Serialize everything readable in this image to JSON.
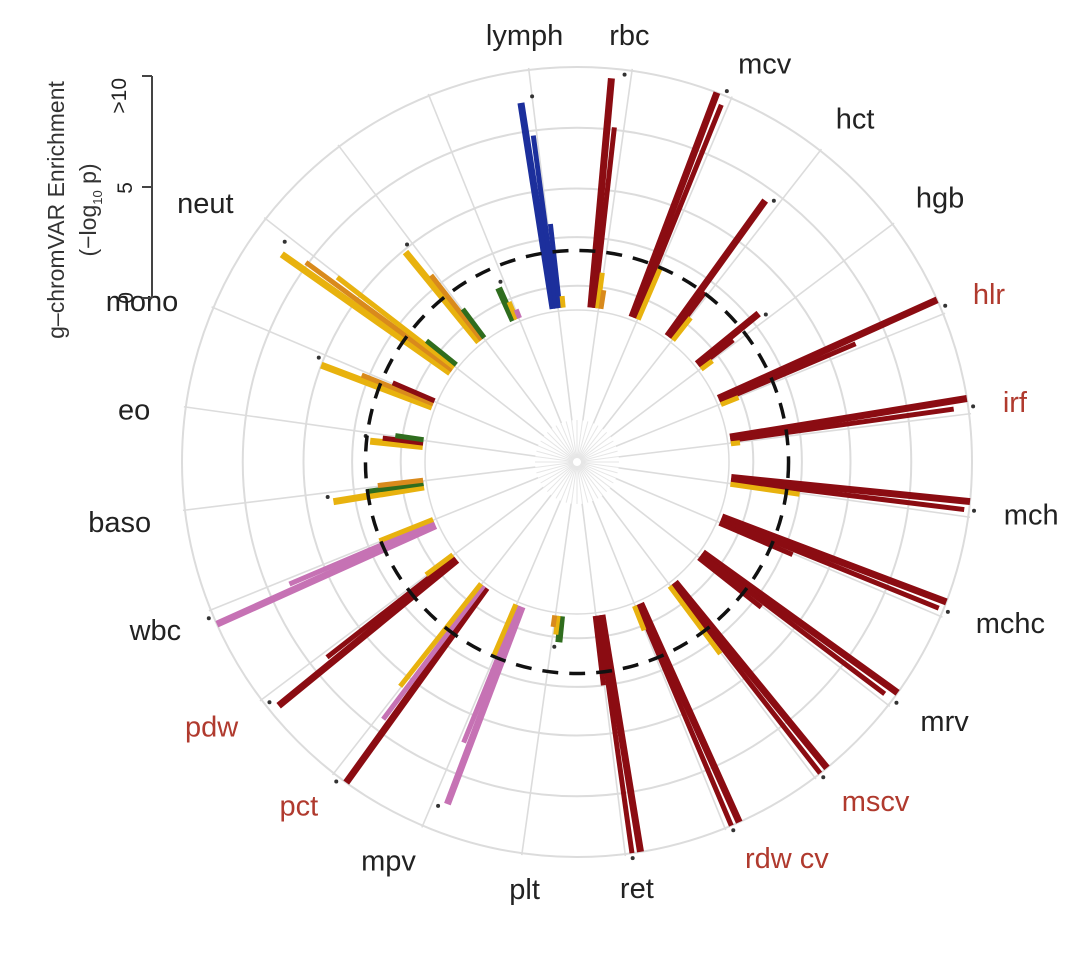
{
  "chart_data": {
    "type": "radial-bar",
    "title": "",
    "axis": {
      "title_line1": "g–chromVAR Enrichment",
      "title_line2_pre": "(−log",
      "title_line2_sub": "10",
      "title_line2_post": " p)",
      "ticks": [
        {
          "value": 0,
          "label": "0"
        },
        {
          "value": 5,
          "label": "5"
        },
        {
          "value": 10,
          "label": ">10"
        }
      ],
      "range": [
        0,
        10
      ],
      "threshold": 2.45,
      "threshold_style": "dashed"
    },
    "colors": {
      "highlight_label": "#b03a2e",
      "default_label": "#222222",
      "red": "#8b0c12",
      "yellow": "#e8b20e",
      "orange": "#d98a1c",
      "green": "#2f6d1e",
      "blue": "#1c2f9c",
      "pink": "#c672b4",
      "dashed_ring": "#111111",
      "grid": "#dcdcdc"
    },
    "traits": [
      {
        "label": "lymph",
        "angle": -7,
        "highlight": false,
        "bars": [
          {
            "v": 8.7,
            "c": "blue"
          },
          {
            "v": 7.3,
            "c": "blue"
          },
          {
            "v": 3.6,
            "c": "blue"
          },
          {
            "v": 0.6,
            "c": "yellow"
          }
        ]
      },
      {
        "label": "rbc",
        "angle": 7,
        "highlight": false,
        "bars": [
          {
            "v": 9.6,
            "c": "red"
          },
          {
            "v": 7.6,
            "c": "red"
          },
          {
            "v": 1.6,
            "c": "yellow"
          },
          {
            "v": 0.9,
            "c": "orange"
          }
        ]
      },
      {
        "label": "mcv",
        "angle": 22,
        "highlight": false,
        "bars": [
          {
            "v": 10,
            "c": "red"
          },
          {
            "v": 9.6,
            "c": "red"
          },
          {
            "v": 2.5,
            "c": "yellow"
          }
        ]
      },
      {
        "label": "hct",
        "angle": 37,
        "highlight": false,
        "bars": [
          {
            "v": 7.0,
            "c": "red"
          },
          {
            "v": 2.5,
            "c": "red"
          },
          {
            "v": 1.3,
            "c": "yellow"
          }
        ]
      },
      {
        "label": "hgb",
        "angle": 52,
        "highlight": false,
        "bars": [
          {
            "v": 3.4,
            "c": "red"
          },
          {
            "v": 1.9,
            "c": "red"
          },
          {
            "v": 0.7,
            "c": "yellow"
          }
        ]
      },
      {
        "label": "hlr",
        "angle": 67,
        "highlight": true,
        "bars": [
          {
            "v": 10,
            "c": "red"
          },
          {
            "v": 6.2,
            "c": "red"
          },
          {
            "v": 0.9,
            "c": "yellow"
          }
        ]
      },
      {
        "label": "irf",
        "angle": 82,
        "highlight": true,
        "bars": [
          {
            "v": 10,
            "c": "red"
          },
          {
            "v": 9.4,
            "c": "red"
          },
          {
            "v": 0.5,
            "c": "yellow"
          }
        ]
      },
      {
        "label": "mch",
        "angle": 97,
        "highlight": false,
        "bars": [
          {
            "v": 10,
            "c": "red"
          },
          {
            "v": 9.8,
            "c": "red"
          },
          {
            "v": 3.0,
            "c": "yellow"
          }
        ]
      },
      {
        "label": "mchc",
        "angle": 112,
        "highlight": false,
        "bars": [
          {
            "v": 10,
            "c": "red"
          },
          {
            "v": 9.8,
            "c": "red"
          },
          {
            "v": 3.4,
            "c": "red"
          }
        ]
      },
      {
        "label": "mrv",
        "angle": 127,
        "highlight": false,
        "bars": [
          {
            "v": 10,
            "c": "red"
          },
          {
            "v": 9.6,
            "c": "red"
          },
          {
            "v": 3.4,
            "c": "red"
          }
        ]
      },
      {
        "label": "mscv",
        "angle": 142,
        "highlight": true,
        "bars": [
          {
            "v": 10,
            "c": "red"
          },
          {
            "v": 10,
            "c": "red"
          },
          {
            "v": 3.6,
            "c": "yellow"
          }
        ]
      },
      {
        "label": "rdw cv",
        "angle": 157,
        "highlight": true,
        "bars": [
          {
            "v": 10,
            "c": "red"
          },
          {
            "v": 10,
            "c": "red"
          },
          {
            "v": 1.2,
            "c": "yellow"
          }
        ]
      },
      {
        "label": "ret",
        "angle": 172,
        "highlight": false,
        "bars": [
          {
            "v": 10,
            "c": "red"
          },
          {
            "v": 10,
            "c": "red"
          },
          {
            "v": 3.0,
            "c": "red"
          }
        ]
      },
      {
        "label": "plt",
        "angle": 187,
        "highlight": false,
        "bars": [
          {
            "v": 1.2,
            "c": "green"
          },
          {
            "v": 0.9,
            "c": "yellow"
          },
          {
            "v": 0.6,
            "c": "orange"
          }
        ]
      },
      {
        "label": "mpv",
        "angle": 202,
        "highlight": false,
        "bars": [
          {
            "v": 8.8,
            "c": "pink"
          },
          {
            "v": 6.2,
            "c": "pink"
          },
          {
            "v": 2.5,
            "c": "yellow"
          }
        ]
      },
      {
        "label": "pct",
        "angle": 217,
        "highlight": true,
        "bars": [
          {
            "v": 10,
            "c": "red"
          },
          {
            "v": 7.0,
            "c": "pink"
          },
          {
            "v": 5.5,
            "c": "yellow"
          }
        ]
      },
      {
        "label": "pdw",
        "angle": 232,
        "highlight": true,
        "bars": [
          {
            "v": 9.6,
            "c": "red"
          },
          {
            "v": 6.8,
            "c": "red"
          },
          {
            "v": 1.5,
            "c": "yellow"
          }
        ]
      },
      {
        "label": "wbc",
        "angle": 247,
        "highlight": false,
        "bars": [
          {
            "v": 10,
            "c": "pink"
          },
          {
            "v": 6.6,
            "c": "pink"
          },
          {
            "v": 2.5,
            "c": "yellow"
          }
        ]
      },
      {
        "label": "baso",
        "angle": 262,
        "highlight": false,
        "bars": [
          {
            "v": 3.9,
            "c": "yellow"
          },
          {
            "v": 2.5,
            "c": "green"
          },
          {
            "v": 2.0,
            "c": "orange"
          }
        ]
      },
      {
        "label": "eo",
        "angle": 277,
        "highlight": false,
        "bars": [
          {
            "v": 2.3,
            "c": "yellow"
          },
          {
            "v": 1.8,
            "c": "red"
          },
          {
            "v": 1.3,
            "c": "green"
          }
        ]
      },
      {
        "label": "mono",
        "angle": 292,
        "highlight": false,
        "bars": [
          {
            "v": 5.0,
            "c": "yellow"
          },
          {
            "v": 3.3,
            "c": "orange"
          },
          {
            "v": 2.0,
            "c": "red"
          }
        ]
      },
      {
        "label": "neut",
        "angle": 307,
        "highlight": false,
        "bars": [
          {
            "v": 8.6,
            "c": "yellow"
          },
          {
            "v": 7.6,
            "c": "orange"
          },
          {
            "v": 6.2,
            "c": "yellow"
          },
          {
            "v": 1.7,
            "c": "green"
          }
        ]
      },
      {
        "label": "",
        "angle": 322,
        "highlight": false,
        "bars": [
          {
            "v": 4.9,
            "c": "yellow"
          },
          {
            "v": 3.5,
            "c": "orange"
          },
          {
            "v": 1.6,
            "c": "green"
          }
        ]
      },
      {
        "label": "",
        "angle": 337,
        "highlight": false,
        "bars": [
          {
            "v": 1.6,
            "c": "green"
          },
          {
            "v": 0.9,
            "c": "yellow"
          },
          {
            "v": 0.5,
            "c": "pink"
          }
        ]
      }
    ]
  }
}
